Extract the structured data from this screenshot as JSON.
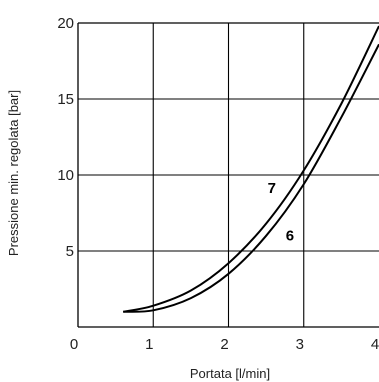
{
  "chart_data": {
    "type": "line",
    "title": "",
    "xlabel": "Portata [l/min]",
    "ylabel": "Pressione min. regolata [bar]",
    "xlim": [
      0,
      4
    ],
    "ylim": [
      0,
      20
    ],
    "grid": true,
    "x_ticks": [
      "0",
      "1",
      "2",
      "3",
      "4"
    ],
    "y_ticks": [
      "5",
      "10",
      "15",
      "20"
    ],
    "series": [
      {
        "name": "7",
        "x": [
          0.6,
          1.0,
          1.5,
          2.0,
          2.5,
          3.0,
          3.5,
          4.0
        ],
        "y": [
          1.0,
          1.4,
          2.4,
          4.2,
          6.8,
          10.3,
          14.7,
          19.8
        ]
      },
      {
        "name": "6",
        "x": [
          0.6,
          1.0,
          1.5,
          2.0,
          2.5,
          3.0,
          3.5,
          4.0
        ],
        "y": [
          1.0,
          1.1,
          1.9,
          3.5,
          6.0,
          9.4,
          13.8,
          18.6
        ]
      }
    ]
  }
}
